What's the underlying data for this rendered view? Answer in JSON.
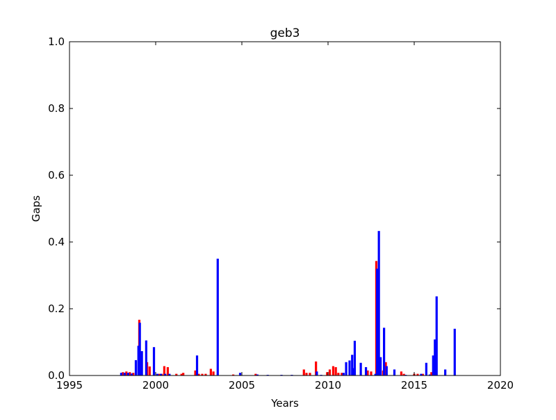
{
  "chart_data": {
    "type": "bar",
    "title": "geb3",
    "xlabel": "Years",
    "ylabel": "Gaps",
    "xlim": [
      1995,
      2020
    ],
    "ylim": [
      0.0,
      1.0
    ],
    "xticks": [
      "1995",
      "2000",
      "2005",
      "2010",
      "2015",
      "2020"
    ],
    "yticks": [
      "0.0",
      "0.2",
      "0.4",
      "0.6",
      "0.8",
      "1.0"
    ],
    "grid": false,
    "series": [
      {
        "color": "#ff0000",
        "points": [
          [
            1998.1,
            0.01
          ],
          [
            1998.3,
            0.012
          ],
          [
            1998.5,
            0.01
          ],
          [
            1998.7,
            0.008
          ],
          [
            1999.05,
            0.167
          ],
          [
            1999.5,
            0.04
          ],
          [
            1999.65,
            0.027
          ],
          [
            2000.2,
            0.005
          ],
          [
            2000.35,
            0.005
          ],
          [
            2000.5,
            0.028
          ],
          [
            2000.7,
            0.025
          ],
          [
            2001.2,
            0.005
          ],
          [
            2001.5,
            0.005
          ],
          [
            2001.6,
            0.008
          ],
          [
            2002.3,
            0.015
          ],
          [
            2002.5,
            0.005
          ],
          [
            2002.7,
            0.005
          ],
          [
            2002.9,
            0.005
          ],
          [
            2003.2,
            0.02
          ],
          [
            2003.35,
            0.012
          ],
          [
            2004.5,
            0.003
          ],
          [
            2005.8,
            0.005
          ],
          [
            2008.6,
            0.018
          ],
          [
            2008.75,
            0.008
          ],
          [
            2008.95,
            0.008
          ],
          [
            2009.3,
            0.042
          ],
          [
            2009.95,
            0.01
          ],
          [
            2010.1,
            0.018
          ],
          [
            2010.3,
            0.028
          ],
          [
            2010.45,
            0.025
          ],
          [
            2010.6,
            0.008
          ],
          [
            2010.8,
            0.008
          ],
          [
            2012.3,
            0.015
          ],
          [
            2012.5,
            0.012
          ],
          [
            2012.8,
            0.343
          ],
          [
            2013.2,
            0.015
          ],
          [
            2013.35,
            0.04
          ],
          [
            2014.25,
            0.012
          ],
          [
            2014.4,
            0.005
          ],
          [
            2015.0,
            0.005
          ],
          [
            2015.2,
            0.005
          ],
          [
            2015.5,
            0.005
          ],
          [
            2016.0,
            0.01
          ]
        ]
      },
      {
        "color": "#0000ff",
        "points": [
          [
            1998.0,
            0.008
          ],
          [
            1998.2,
            0.008
          ],
          [
            1998.4,
            0.008
          ],
          [
            1998.6,
            0.006
          ],
          [
            1998.85,
            0.046
          ],
          [
            1999.0,
            0.089
          ],
          [
            1999.08,
            0.158
          ],
          [
            1999.2,
            0.073
          ],
          [
            1999.45,
            0.105
          ],
          [
            1999.9,
            0.085
          ],
          [
            2000.1,
            0.005
          ],
          [
            2000.3,
            0.005
          ],
          [
            2000.55,
            0.005
          ],
          [
            2000.8,
            0.005
          ],
          [
            2002.4,
            0.06
          ],
          [
            2003.6,
            0.35
          ],
          [
            2004.9,
            0.008
          ],
          [
            2005.9,
            0.003
          ],
          [
            2006.5,
            0.002
          ],
          [
            2007.3,
            0.002
          ],
          [
            2007.9,
            0.002
          ],
          [
            2009.35,
            0.012
          ],
          [
            2009.6,
            0.002
          ],
          [
            2010.9,
            0.008
          ],
          [
            2011.05,
            0.04
          ],
          [
            2011.25,
            0.045
          ],
          [
            2011.4,
            0.062
          ],
          [
            2011.5,
            0.022
          ],
          [
            2011.55,
            0.104
          ],
          [
            2011.9,
            0.038
          ],
          [
            2012.2,
            0.025
          ],
          [
            2012.75,
            0.005
          ],
          [
            2012.85,
            0.32
          ],
          [
            2012.95,
            0.433
          ],
          [
            2013.05,
            0.055
          ],
          [
            2013.25,
            0.143
          ],
          [
            2013.4,
            0.028
          ],
          [
            2013.85,
            0.018
          ],
          [
            2014.5,
            0.002
          ],
          [
            2015.4,
            0.005
          ],
          [
            2015.7,
            0.038
          ],
          [
            2015.9,
            0.003
          ],
          [
            2016.1,
            0.06
          ],
          [
            2016.2,
            0.108
          ],
          [
            2016.3,
            0.237
          ],
          [
            2016.8,
            0.018
          ],
          [
            2017.35,
            0.14
          ]
        ]
      }
    ]
  }
}
